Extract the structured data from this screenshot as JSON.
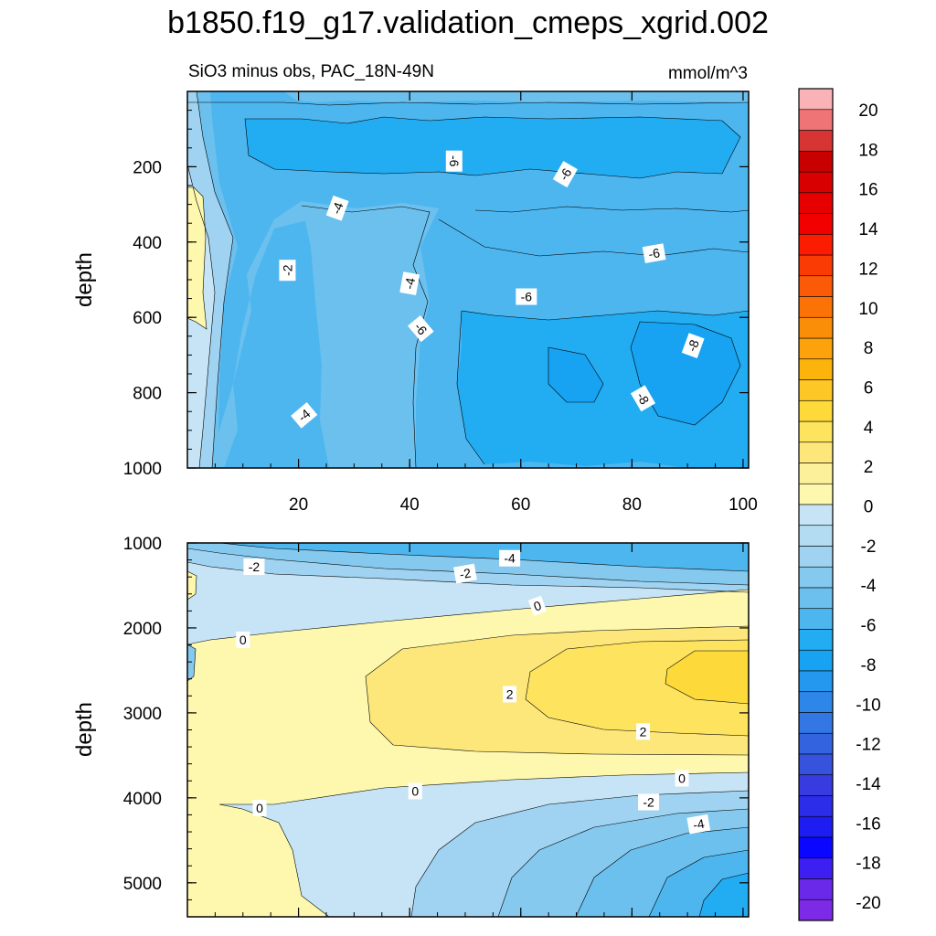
{
  "title": "b1850.f19_g17.validation_cmeps_xgrid.002",
  "colors": {
    "frame": "#000000",
    "neg": [
      "#c6e4f5",
      "#b3dcf3",
      "#9fd3f1",
      "#86c9ee",
      "#6cc0ee",
      "#4eb6ef",
      "#22acf2",
      "#17a3f2",
      "#2497ef",
      "#2d87e8",
      "#3277e4",
      "#3463df",
      "#3752dc",
      "#383bdf",
      "#2b2de8",
      "#1d1cf3",
      "#0b06ff",
      "#3d1ff2",
      "#6a29e8",
      "#7d2ae6"
    ],
    "pos": [
      "#fdf8ad",
      "#fdf09b",
      "#fde77a",
      "#fde35e",
      "#fdd93a",
      "#fdc826",
      "#fcb40d",
      "#fca20b",
      "#fb8e08",
      "#fb7307",
      "#fb5a06",
      "#fa3c04",
      "#fb1c02",
      "#f20000",
      "#e60000",
      "#d80000",
      "#c90000",
      "#d73533",
      "#ee7476",
      "#f9b2b5"
    ]
  },
  "chart_data": [
    {
      "type": "contour",
      "panel": "upper",
      "subtitle_left": "SiO3 minus obs, PAC_18N-49N",
      "subtitle_right": "mmol/m^3",
      "ylabel": "depth",
      "xlim": [
        0,
        101
      ],
      "ylim": [
        1000,
        0
      ],
      "yticks": [
        200,
        400,
        600,
        800,
        1000
      ],
      "xticks": [
        20,
        40,
        60,
        80,
        100
      ],
      "contour_labels": [
        {
          "text": "-6",
          "x": 48,
          "y": 185,
          "angle": 90
        },
        {
          "text": "-6",
          "x": 68,
          "y": 220,
          "angle": -60
        },
        {
          "text": "-4",
          "x": 27,
          "y": 310,
          "angle": -70
        },
        {
          "text": "-2",
          "x": 18,
          "y": 475,
          "angle": -90
        },
        {
          "text": "-6",
          "x": 84,
          "y": 430,
          "angle": -10
        },
        {
          "text": "-6",
          "x": 61,
          "y": 545,
          "angle": 0
        },
        {
          "text": "-4",
          "x": 40,
          "y": 510,
          "angle": -80
        },
        {
          "text": "-6",
          "x": 42,
          "y": 630,
          "angle": 50
        },
        {
          "text": "-8",
          "x": 91,
          "y": 675,
          "angle": -70
        },
        {
          "text": "-8",
          "x": 82,
          "y": 815,
          "angle": 60
        },
        {
          "text": "-4",
          "x": 21,
          "y": 860,
          "angle": -40
        }
      ]
    },
    {
      "type": "contour",
      "panel": "lower",
      "ylabel": "depth",
      "xlim": [
        0,
        101
      ],
      "ylim": [
        5400,
        1000
      ],
      "yticks": [
        1000,
        2000,
        3000,
        4000,
        5000
      ],
      "contour_labels": [
        {
          "text": "-2",
          "x": 12,
          "y": 1280,
          "angle": 0
        },
        {
          "text": "-2",
          "x": 50,
          "y": 1360,
          "angle": -10
        },
        {
          "text": "-4",
          "x": 58,
          "y": 1180,
          "angle": 0
        },
        {
          "text": "0",
          "x": 63,
          "y": 1740,
          "angle": -20
        },
        {
          "text": "0",
          "x": 10,
          "y": 2140,
          "angle": 0
        },
        {
          "text": "2",
          "x": 58,
          "y": 2780,
          "angle": 0
        },
        {
          "text": "2",
          "x": 82,
          "y": 3220,
          "angle": 0
        },
        {
          "text": "0",
          "x": 89,
          "y": 3770,
          "angle": 0
        },
        {
          "text": "0",
          "x": 41,
          "y": 3920,
          "angle": 0
        },
        {
          "text": "0",
          "x": 13,
          "y": 4120,
          "angle": 0
        },
        {
          "text": "-2",
          "x": 83,
          "y": 4050,
          "angle": 0
        },
        {
          "text": "-4",
          "x": 92,
          "y": 4310,
          "angle": -10
        }
      ]
    }
  ],
  "colorbar": {
    "labels": [
      "20",
      "18",
      "16",
      "14",
      "12",
      "10",
      "8",
      "6",
      "4",
      "2",
      "0",
      "-2",
      "-4",
      "-6",
      "-8",
      "-10",
      "-12",
      "-14",
      "-16",
      "-18",
      "-20"
    ],
    "levels": [
      20,
      18,
      16,
      14,
      12,
      10,
      8,
      6,
      4,
      2,
      0,
      -2,
      -4,
      -6,
      -8,
      -10,
      -12,
      -14,
      -16,
      -18,
      -20
    ]
  }
}
